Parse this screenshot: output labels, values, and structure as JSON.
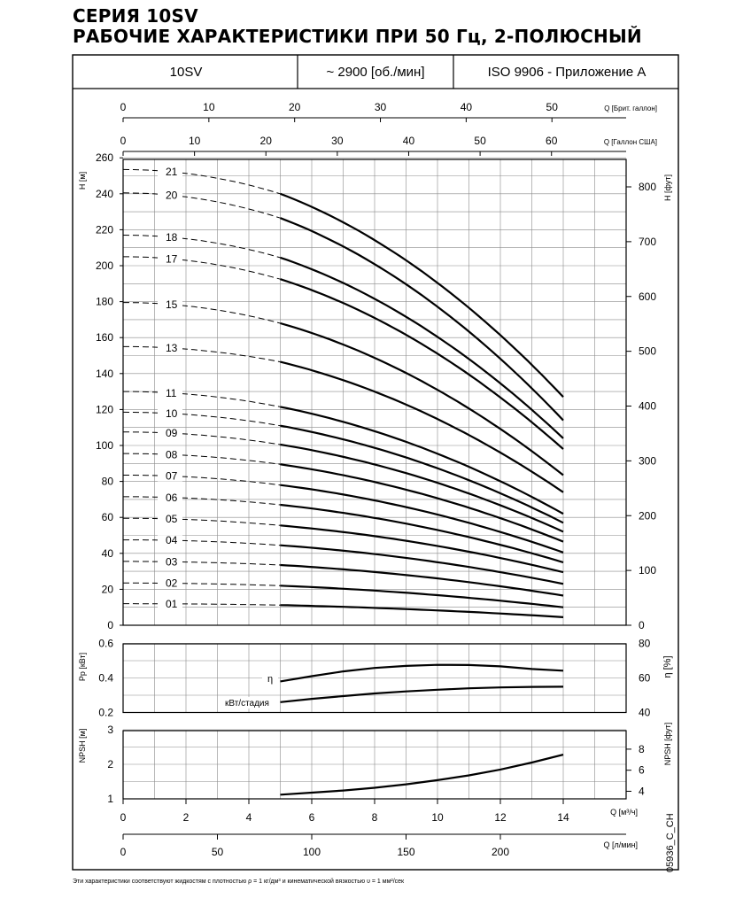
{
  "header": {
    "title_line1": "СЕРИЯ 10SV",
    "title_line2": "РАБОЧИЕ ХАРАКТЕРИСТИКИ ПРИ 50 Гц, 2-ПОЛЮСНЫЙ",
    "cell_model": "10SV",
    "cell_speed": "~ 2900 [об./мин]",
    "cell_standard": "ISO 9906 - Приложение A"
  },
  "footer": {
    "note": "Эти характеристики соответствуют жидкостям с плотностью ρ = 1 кг/дм³ и кинематической вязкостью υ = 1 мм²/сек",
    "code": "05936_C_CH"
  },
  "chart_data": [
    {
      "type": "line",
      "name": "head",
      "x_axis": {
        "label": "Q [м³/ч]",
        "range": [
          0,
          16
        ],
        "ticks": [
          0,
          2,
          4,
          6,
          8,
          10,
          12,
          14
        ]
      },
      "x_axis_lpm": {
        "label": "Q [л/мин]",
        "ticks": [
          0,
          50,
          100,
          150,
          200
        ]
      },
      "x_axis_us_gal": {
        "label": "Q [Галлон США]",
        "ticks": [
          0,
          10,
          20,
          30,
          40,
          50,
          60
        ]
      },
      "x_axis_imp_gal": {
        "label": "Q [Брит. галлон]",
        "ticks": [
          0,
          10,
          20,
          30,
          40,
          50
        ]
      },
      "y_axis": {
        "label": "H [м]",
        "range": [
          0,
          260
        ],
        "ticks": [
          0,
          20,
          40,
          60,
          80,
          100,
          120,
          140,
          160,
          180,
          200,
          220,
          240,
          260
        ]
      },
      "y2_axis": {
        "label": "H [фут]",
        "ticks": [
          0,
          100,
          200,
          300,
          400,
          500,
          600,
          700,
          800
        ]
      },
      "grid": true,
      "operating_range_q": [
        5,
        14
      ],
      "series": [
        {
          "label": "01",
          "shutoff": 12,
          "h_min": 11.2,
          "h_max": 4.5
        },
        {
          "label": "02",
          "shutoff": 23.5,
          "h_min": 22,
          "h_max": 10
        },
        {
          "label": "03",
          "shutoff": 35.5,
          "h_min": 33.5,
          "h_max": 16.5
        },
        {
          "label": "04",
          "shutoff": 47.5,
          "h_min": 44.5,
          "h_max": 23
        },
        {
          "label": "05",
          "shutoff": 59.5,
          "h_min": 55.5,
          "h_max": 29.5
        },
        {
          "label": "06",
          "shutoff": 71.5,
          "h_min": 67,
          "h_max": 35
        },
        {
          "label": "07",
          "shutoff": 83.5,
          "h_min": 78,
          "h_max": 40.5
        },
        {
          "label": "08",
          "shutoff": 95.5,
          "h_min": 89.5,
          "h_max": 46.5
        },
        {
          "label": "09",
          "shutoff": 107.5,
          "h_min": 100.5,
          "h_max": 52
        },
        {
          "label": "10",
          "shutoff": 118.5,
          "h_min": 111,
          "h_max": 57
        },
        {
          "label": "11",
          "shutoff": 130,
          "h_min": 121.5,
          "h_max": 62
        },
        {
          "label": "13",
          "shutoff": 155,
          "h_min": 146.5,
          "h_max": 74
        },
        {
          "label": "15",
          "shutoff": 179.5,
          "h_min": 168,
          "h_max": 83.5
        },
        {
          "label": "17",
          "shutoff": 205,
          "h_min": 192.5,
          "h_max": 98
        },
        {
          "label": "18",
          "shutoff": 217,
          "h_min": 204.5,
          "h_max": 104
        },
        {
          "label": "20",
          "shutoff": 240.5,
          "h_min": 226.5,
          "h_max": 114
        },
        {
          "label": "21",
          "shutoff": 253.5,
          "h_min": 240,
          "h_max": 127
        }
      ]
    },
    {
      "type": "line",
      "name": "power-efficiency",
      "y_axis": {
        "label": "Pp [кВт]",
        "range": [
          0.2,
          0.6
        ],
        "ticks": [
          0.2,
          0.4,
          0.6
        ]
      },
      "y2_axis": {
        "label": "η [%]",
        "range": [
          40,
          80
        ],
        "ticks": [
          40,
          60,
          80
        ]
      },
      "grid": true,
      "series": [
        {
          "name": "η",
          "x": [
            5,
            6,
            7,
            8,
            9,
            10,
            11,
            12,
            13,
            14
          ],
          "y": [
            58,
            61,
            63.8,
            65.8,
            67,
            67.6,
            67.5,
            66.7,
            65.2,
            64.2
          ]
        },
        {
          "name": "кВт/стадия",
          "x": [
            5,
            6,
            7,
            8,
            9,
            10,
            11,
            12,
            13,
            14
          ],
          "y": [
            0.26,
            0.279,
            0.295,
            0.31,
            0.322,
            0.332,
            0.34,
            0.345,
            0.348,
            0.349
          ]
        }
      ]
    },
    {
      "type": "line",
      "name": "npsh",
      "y_axis": {
        "label": "NPSH [м]",
        "range": [
          1,
          3
        ],
        "ticks": [
          1,
          2,
          3
        ]
      },
      "y2_axis": {
        "label": "NPSH [фут]",
        "ticks": [
          4,
          6,
          8
        ]
      },
      "grid": true,
      "series": [
        {
          "x": [
            5,
            6,
            7,
            8,
            9,
            10,
            11,
            12,
            13,
            14
          ],
          "y": [
            1.12,
            1.18,
            1.24,
            1.32,
            1.42,
            1.54,
            1.68,
            1.85,
            2.05,
            2.28
          ]
        }
      ]
    }
  ]
}
